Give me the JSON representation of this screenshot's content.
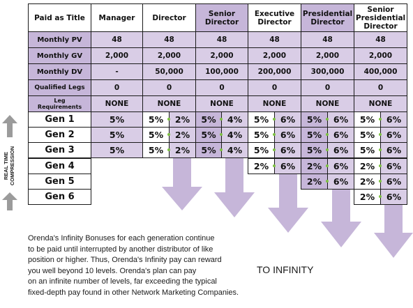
{
  "table": {
    "corner": "Paid as Title",
    "titles": [
      "Manager",
      "Director",
      "Senior Director",
      "Executive Director",
      "Presidential Director",
      "Senior Presidential Director"
    ],
    "rows": [
      {
        "label": "Monthly PV",
        "values": [
          "48",
          "48",
          "48",
          "48",
          "48",
          "48"
        ]
      },
      {
        "label": "Monthly GV",
        "values": [
          "2,000",
          "2,000",
          "2,000",
          "2,000",
          "2,000",
          "2,000"
        ]
      },
      {
        "label": "Monthly DV",
        "values": [
          "-",
          "50,000",
          "100,000",
          "200,000",
          "300,000",
          "400,000"
        ]
      },
      {
        "label": "Qualified Legs",
        "values": [
          "0",
          "0",
          "0",
          "0",
          "0",
          "0"
        ]
      },
      {
        "label": "Leg Requirements",
        "values": [
          "NONE",
          "NONE",
          "NONE",
          "NONE",
          "NONE",
          "NONE"
        ]
      }
    ],
    "generations": [
      "Gen 1",
      "Gen 2",
      "Gen 3",
      "Gen 4",
      "Gen 5",
      "Gen 6"
    ],
    "manager_gen": [
      "5%",
      "5%",
      "5%"
    ],
    "director_gen": [
      [
        "5%",
        "2%"
      ],
      [
        "5%",
        "2%"
      ],
      [
        "5%",
        "2%"
      ]
    ],
    "senior_director_gen": [
      [
        "5%",
        "4%"
      ],
      [
        "5%",
        "4%"
      ],
      [
        "5%",
        "4%"
      ]
    ],
    "executive_director_gen": [
      [
        "5%",
        "6%"
      ],
      [
        "5%",
        "6%"
      ],
      [
        "5%",
        "6%"
      ],
      [
        "2%",
        "6%"
      ]
    ],
    "presidential_director_gen": [
      [
        "5%",
        "6%"
      ],
      [
        "5%",
        "6%"
      ],
      [
        "5%",
        "6%"
      ],
      [
        "2%",
        "6%"
      ],
      [
        "2%",
        "6%"
      ]
    ],
    "senior_presidential_gen": [
      [
        "5%",
        "6%"
      ],
      [
        "5%",
        "6%"
      ],
      [
        "5%",
        "6%"
      ],
      [
        "2%",
        "6%"
      ],
      [
        "2%",
        "6%"
      ],
      [
        "2%",
        "6%"
      ]
    ]
  },
  "side_label": [
    "REAL TIME",
    "COMPRESSION"
  ],
  "paragraph": [
    "Orenda's Infinity Bonuses for each generation continue",
    "to be paid until interrupted by another distributor of like",
    "position or higher. Thus, Orenda's Infinity pay can reward",
    "you well beyond 10 levels. Orenda's plan can pay",
    "on an infinite number of levels, far exceeding the typical",
    "fixed-depth pay found in other Network Marketing Companies."
  ],
  "to_infinity": "TO INFINITY"
}
